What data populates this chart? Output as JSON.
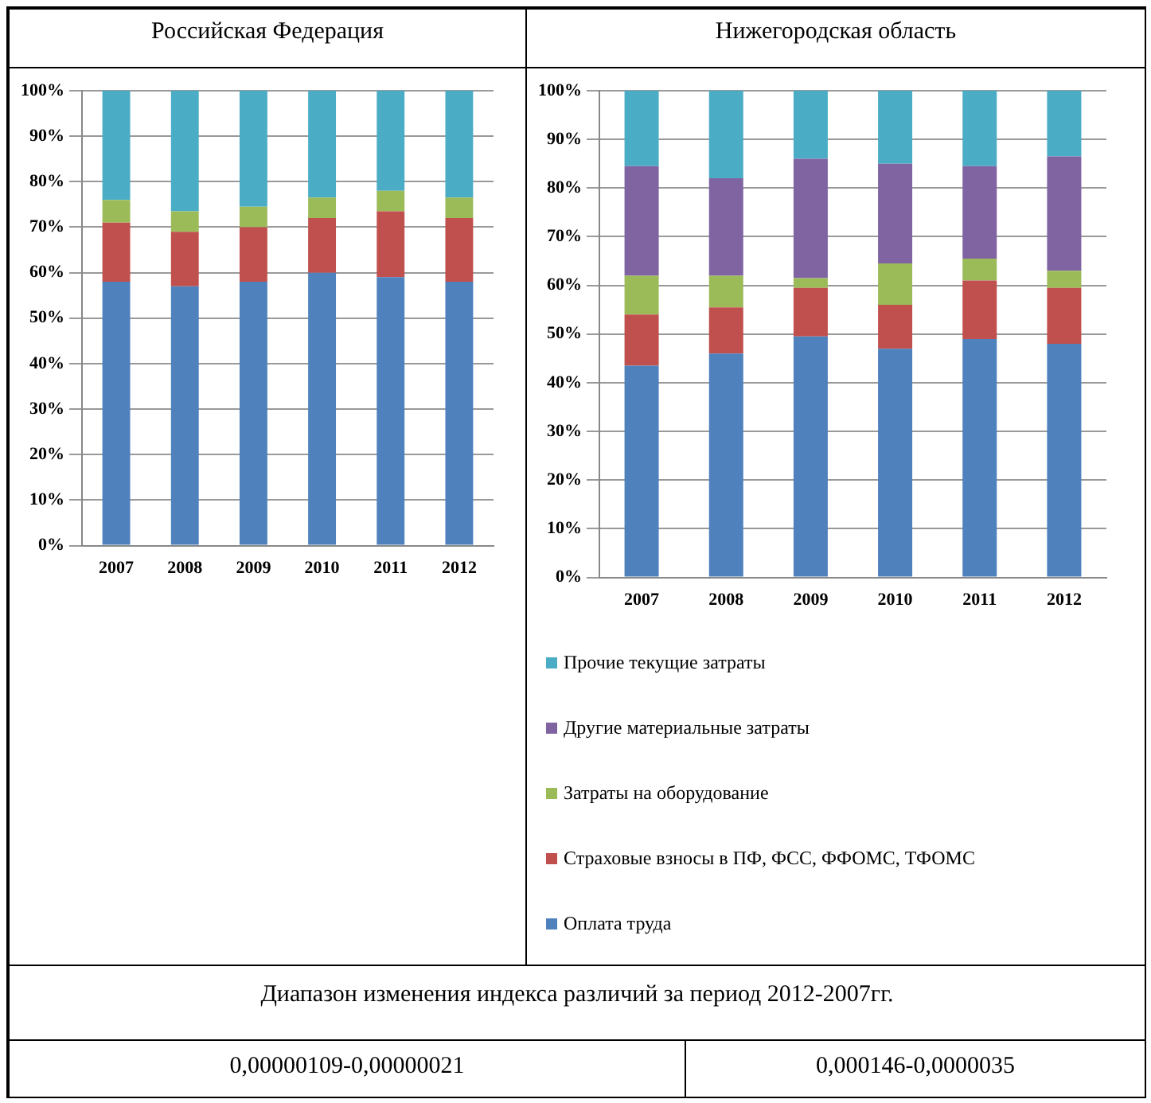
{
  "chart_data": [
    {
      "type": "bar",
      "title": "Российская Федерация",
      "categories": [
        "2007",
        "2008",
        "2009",
        "2010",
        "2011",
        "2012"
      ],
      "stacked": true,
      "series": [
        {
          "color": "#4f81bd",
          "values": [
            58,
            57,
            58,
            60,
            59,
            58
          ]
        },
        {
          "color": "#c0504d",
          "values": [
            13,
            12,
            12,
            12,
            14.5,
            14
          ]
        },
        {
          "color": "#9bbb59",
          "values": [
            5,
            4.5,
            4.5,
            4.5,
            4.5,
            4.5
          ]
        },
        {
          "color": "#4bacc6",
          "values": [
            24,
            26.5,
            25.5,
            23.5,
            22,
            23.5
          ]
        }
      ],
      "ylim": [
        0,
        100
      ],
      "yticks": [
        {
          "value": 0,
          "label": "0%"
        },
        {
          "value": 10,
          "label": "10%"
        },
        {
          "value": 20,
          "label": "20%"
        },
        {
          "value": 30,
          "label": "30%"
        },
        {
          "value": 40,
          "label": "40%"
        },
        {
          "value": 50,
          "label": "50%"
        },
        {
          "value": 60,
          "label": "60%"
        },
        {
          "value": 70,
          "label": "70%"
        },
        {
          "value": 80,
          "label": "80%"
        },
        {
          "value": 90,
          "label": "90%"
        },
        {
          "value": 100,
          "label": "100%"
        }
      ],
      "grid": "y",
      "legend": false,
      "annotations": [
        "Диапазон изменения  индекса различий за период 2012-2007гг.",
        "0,00000109-0,00000021"
      ]
    },
    {
      "type": "bar",
      "title": "Нижегородская область",
      "categories": [
        "2007",
        "2008",
        "2009",
        "2010",
        "2011",
        "2012"
      ],
      "stacked": true,
      "series": [
        {
          "name": "Оплата труда",
          "color": "#4f81bd",
          "values": [
            43.5,
            46,
            49.5,
            47,
            49,
            48
          ]
        },
        {
          "name": "Страховые взносы в ПФ, ФСС, ФФОМС, ТФОМС",
          "color": "#c0504d",
          "values": [
            10.5,
            9.5,
            10,
            9,
            12,
            11.5
          ]
        },
        {
          "name": "Затраты на оборудование",
          "color": "#9bbb59",
          "values": [
            8,
            6.5,
            2,
            8.5,
            4.5,
            3.5
          ]
        },
        {
          "name": "Другие материальные затраты",
          "color": "#8064a2",
          "values": [
            22.5,
            20,
            24.5,
            20.5,
            19,
            23.5
          ]
        },
        {
          "name": "Прочие текущие затраты",
          "color": "#4bacc6",
          "values": [
            15.5,
            18,
            14,
            15,
            15.5,
            13.5
          ]
        }
      ],
      "ylim": [
        0,
        100
      ],
      "yticks": [
        {
          "value": 0,
          "label": "0%"
        },
        {
          "value": 10,
          "label": "10%"
        },
        {
          "value": 20,
          "label": "20%"
        },
        {
          "value": 30,
          "label": "30%"
        },
        {
          "value": 40,
          "label": "40%"
        },
        {
          "value": 50,
          "label": "50%"
        },
        {
          "value": 60,
          "label": "60%"
        },
        {
          "value": 70,
          "label": "70%"
        },
        {
          "value": 80,
          "label": "80%"
        },
        {
          "value": 90,
          "label": "90%"
        },
        {
          "value": 100,
          "label": "100%"
        }
      ],
      "grid": "y",
      "legend": "bottom",
      "annotations": [
        "0,000146-0,0000035"
      ]
    }
  ]
}
